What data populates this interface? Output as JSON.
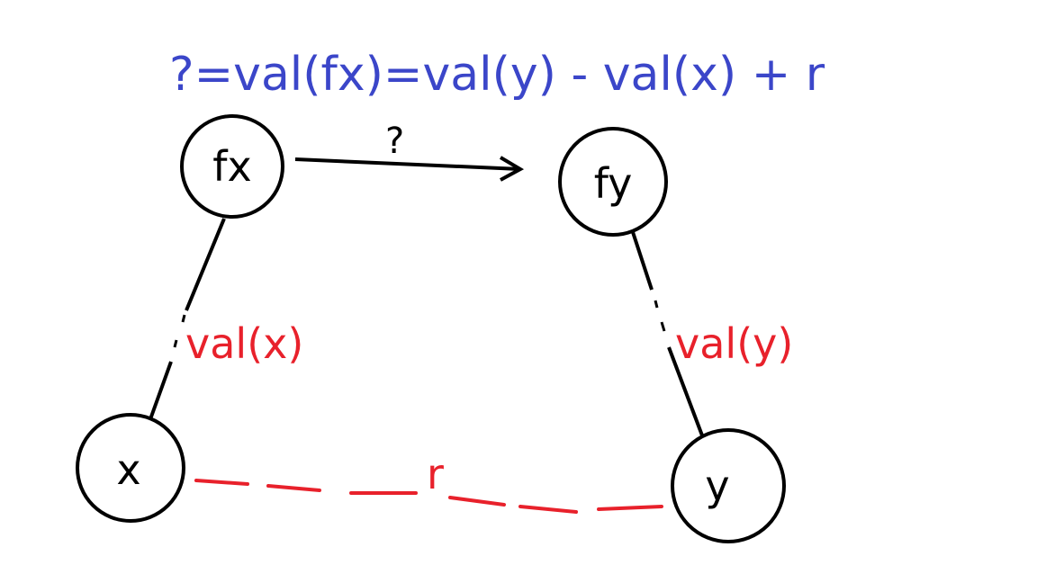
{
  "formula": "?=val(fx)=val(y) - val(x) + r",
  "nodes": {
    "fx": "fx",
    "fy": "fy",
    "x": "x",
    "y": "y"
  },
  "edges": {
    "fx_to_fy": "?",
    "x_to_fx": "val(x)",
    "y_to_fy": "val(y)",
    "x_to_y": "r"
  },
  "colors": {
    "formula": "#3b46c9",
    "relation": "#e8212b",
    "ink": "#000000"
  }
}
